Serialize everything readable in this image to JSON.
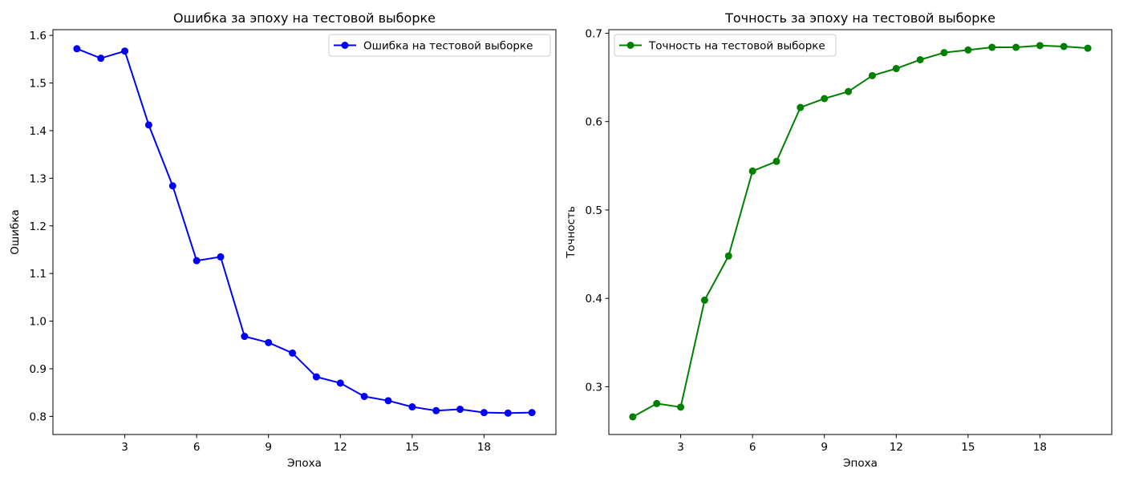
{
  "chart_data": [
    {
      "type": "line",
      "title": "Ошибка за эпоху на тестовой выборке",
      "xlabel": "Эпоха",
      "ylabel": "Ошибка",
      "legend_placement": "top-right",
      "grid": false,
      "xlim": [
        0,
        21
      ],
      "ylim": [
        0.762,
        1.612
      ],
      "xticks": [
        3,
        6,
        9,
        12,
        15,
        18
      ],
      "xtick_labels": [
        "3",
        "6",
        "9",
        "12",
        "15",
        "18"
      ],
      "yticks": [
        0.8,
        0.9,
        1.0,
        1.1,
        1.2,
        1.3,
        1.4,
        1.5,
        1.6
      ],
      "ytick_labels": [
        "0.8",
        "0.9",
        "1.0",
        "1.1",
        "1.2",
        "1.3",
        "1.4",
        "1.5",
        "1.6"
      ],
      "x": [
        1,
        2,
        3,
        4,
        5,
        6,
        7,
        8,
        9,
        10,
        11,
        12,
        13,
        14,
        15,
        16,
        17,
        18,
        19,
        20
      ],
      "series": [
        {
          "name": "Ошибка на тестовой выборке",
          "color": "#0000ff",
          "marker": "circle",
          "values": [
            1.572,
            1.552,
            1.567,
            1.412,
            1.284,
            1.127,
            1.135,
            0.968,
            0.955,
            0.933,
            0.883,
            0.87,
            0.842,
            0.833,
            0.82,
            0.812,
            0.815,
            0.808,
            0.807,
            0.808
          ]
        }
      ]
    },
    {
      "type": "line",
      "title": "Точность за эпоху на тестовой выборке",
      "xlabel": "Эпоха",
      "ylabel": "Точность",
      "legend_placement": "top-left",
      "grid": false,
      "xlim": [
        0,
        21
      ],
      "ylim": [
        0.246,
        0.704
      ],
      "xticks": [
        3,
        6,
        9,
        12,
        15,
        18
      ],
      "xtick_labels": [
        "3",
        "6",
        "9",
        "12",
        "15",
        "18"
      ],
      "yticks": [
        0.3,
        0.4,
        0.5,
        0.6,
        0.7
      ],
      "ytick_labels": [
        "0.3",
        "0.4",
        "0.5",
        "0.6",
        "0.7"
      ],
      "x": [
        1,
        2,
        3,
        4,
        5,
        6,
        7,
        8,
        9,
        10,
        11,
        12,
        13,
        14,
        15,
        16,
        17,
        18,
        19,
        20
      ],
      "series": [
        {
          "name": "Точность на тестовой выборке",
          "color": "#008000",
          "marker": "circle",
          "values": [
            0.266,
            0.281,
            0.277,
            0.398,
            0.448,
            0.544,
            0.555,
            0.616,
            0.626,
            0.634,
            0.652,
            0.66,
            0.67,
            0.678,
            0.681,
            0.684,
            0.684,
            0.686,
            0.685,
            0.683
          ]
        }
      ]
    }
  ]
}
